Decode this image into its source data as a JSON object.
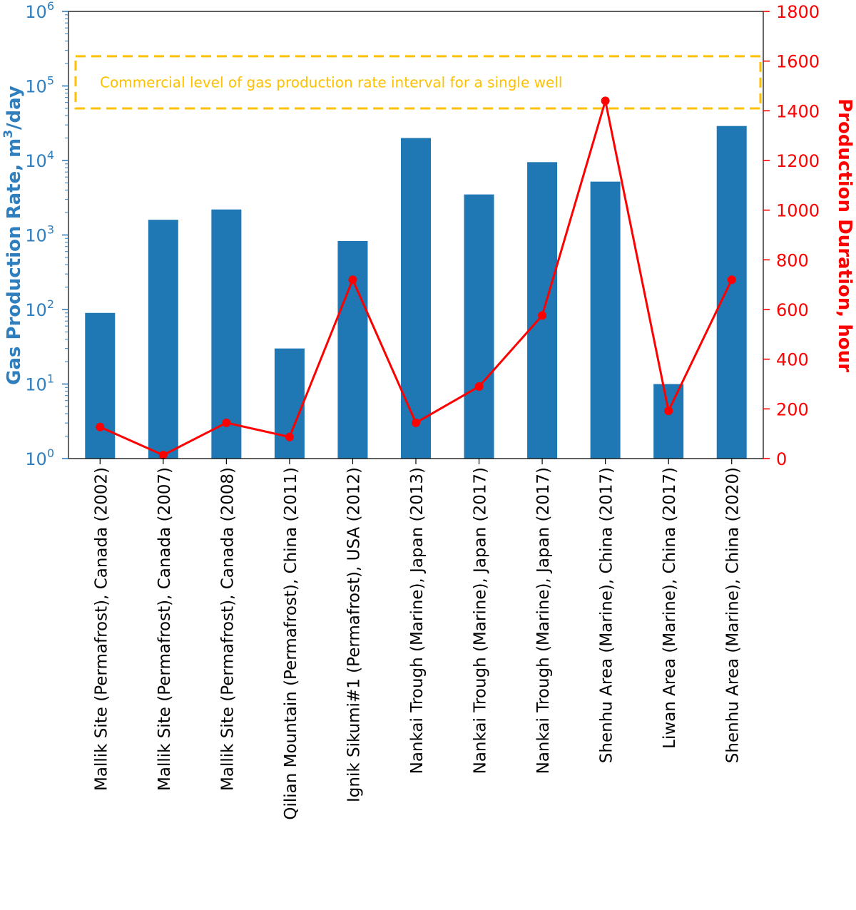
{
  "chart_data": {
    "type": "bar",
    "categories": [
      "Mallik Site (Permafrost), Canada (2002)",
      "Mallik Site (Permafrost), Canada (2007)",
      "Mallik Site (Permafrost), Canada (2008)",
      "Qilian Mountain (Permafrost), China (2011)",
      "Ignik Sikumi#1 (Permafrost), USA (2012)",
      "Nankai Trough (Marine), Japan (2013)",
      "Nankai Trough (Marine), Japan (2017)",
      "Nankai Trough (Marine), Japan (2017)",
      "Shenhu Area (Marine), China (2017)",
      "Liwan Area (Marine), China (2017)",
      "Shenhu Area (Marine), China (2020)"
    ],
    "series": [
      {
        "type": "bar",
        "axis": "left",
        "color": "#1f77b4",
        "values": [
          90,
          1600,
          2200,
          30,
          830,
          20000,
          3500,
          9500,
          5200,
          10,
          29000
        ]
      },
      {
        "type": "line",
        "axis": "right",
        "color": "#ff0000",
        "values": [
          127,
          14,
          144,
          87,
          720,
          144,
          290,
          576,
          1440,
          192,
          720
        ]
      }
    ],
    "y_left": {
      "label": "Gas Production Rate, m",
      "label_sup": "3",
      "label_suffix": "/day",
      "scale": "log",
      "range": [
        1,
        1000000
      ],
      "tick_base": "10",
      "tick_exponents": [
        "0",
        "1",
        "2",
        "3",
        "4",
        "5",
        "6"
      ]
    },
    "y_right": {
      "label": "Production Duration, hour",
      "scale": "linear",
      "range": [
        0,
        1800
      ],
      "ticks": [
        0,
        200,
        400,
        600,
        800,
        1000,
        1200,
        1400,
        1600,
        1800
      ]
    },
    "annotation": {
      "text": "Commercial level of gas production rate interval for a single well",
      "range": [
        50000,
        250000
      ],
      "color": "#ffc000"
    },
    "colors": {
      "left_axis": "#2f7fbf",
      "right_axis": "#ff0000"
    }
  }
}
